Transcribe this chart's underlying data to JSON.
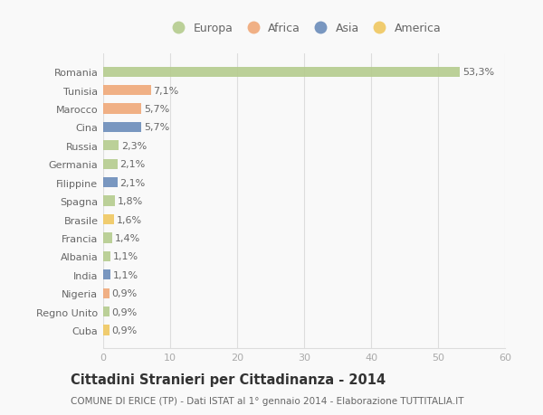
{
  "countries": [
    "Romania",
    "Tunisia",
    "Marocco",
    "Cina",
    "Russia",
    "Germania",
    "Filippine",
    "Spagna",
    "Brasile",
    "Francia",
    "Albania",
    "India",
    "Nigeria",
    "Regno Unito",
    "Cuba"
  ],
  "values": [
    53.3,
    7.1,
    5.7,
    5.7,
    2.3,
    2.1,
    2.1,
    1.8,
    1.6,
    1.4,
    1.1,
    1.1,
    0.9,
    0.9,
    0.9
  ],
  "labels": [
    "53,3%",
    "7,1%",
    "5,7%",
    "5,7%",
    "2,3%",
    "2,1%",
    "2,1%",
    "1,8%",
    "1,6%",
    "1,4%",
    "1,1%",
    "1,1%",
    "0,9%",
    "0,9%",
    "0,9%"
  ],
  "continents": [
    "Europa",
    "Africa",
    "Africa",
    "Asia",
    "Europa",
    "Europa",
    "Asia",
    "Europa",
    "America",
    "Europa",
    "Europa",
    "Asia",
    "Africa",
    "Europa",
    "America"
  ],
  "continent_colors": {
    "Europa": "#b5cc8e",
    "Africa": "#f0a878",
    "Asia": "#6b8cba",
    "America": "#f0c860"
  },
  "legend_order": [
    "Europa",
    "Africa",
    "Asia",
    "America"
  ],
  "xlim": [
    0,
    60
  ],
  "xticks": [
    0,
    10,
    20,
    30,
    40,
    50,
    60
  ],
  "title": "Cittadini Stranieri per Cittadinanza - 2014",
  "subtitle": "COMUNE DI ERICE (TP) - Dati ISTAT al 1° gennaio 2014 - Elaborazione TUTTITALIA.IT",
  "bg_color": "#f9f9f9",
  "grid_color": "#dddddd",
  "bar_height": 0.55,
  "label_fontsize": 8,
  "title_fontsize": 10.5,
  "subtitle_fontsize": 7.5
}
